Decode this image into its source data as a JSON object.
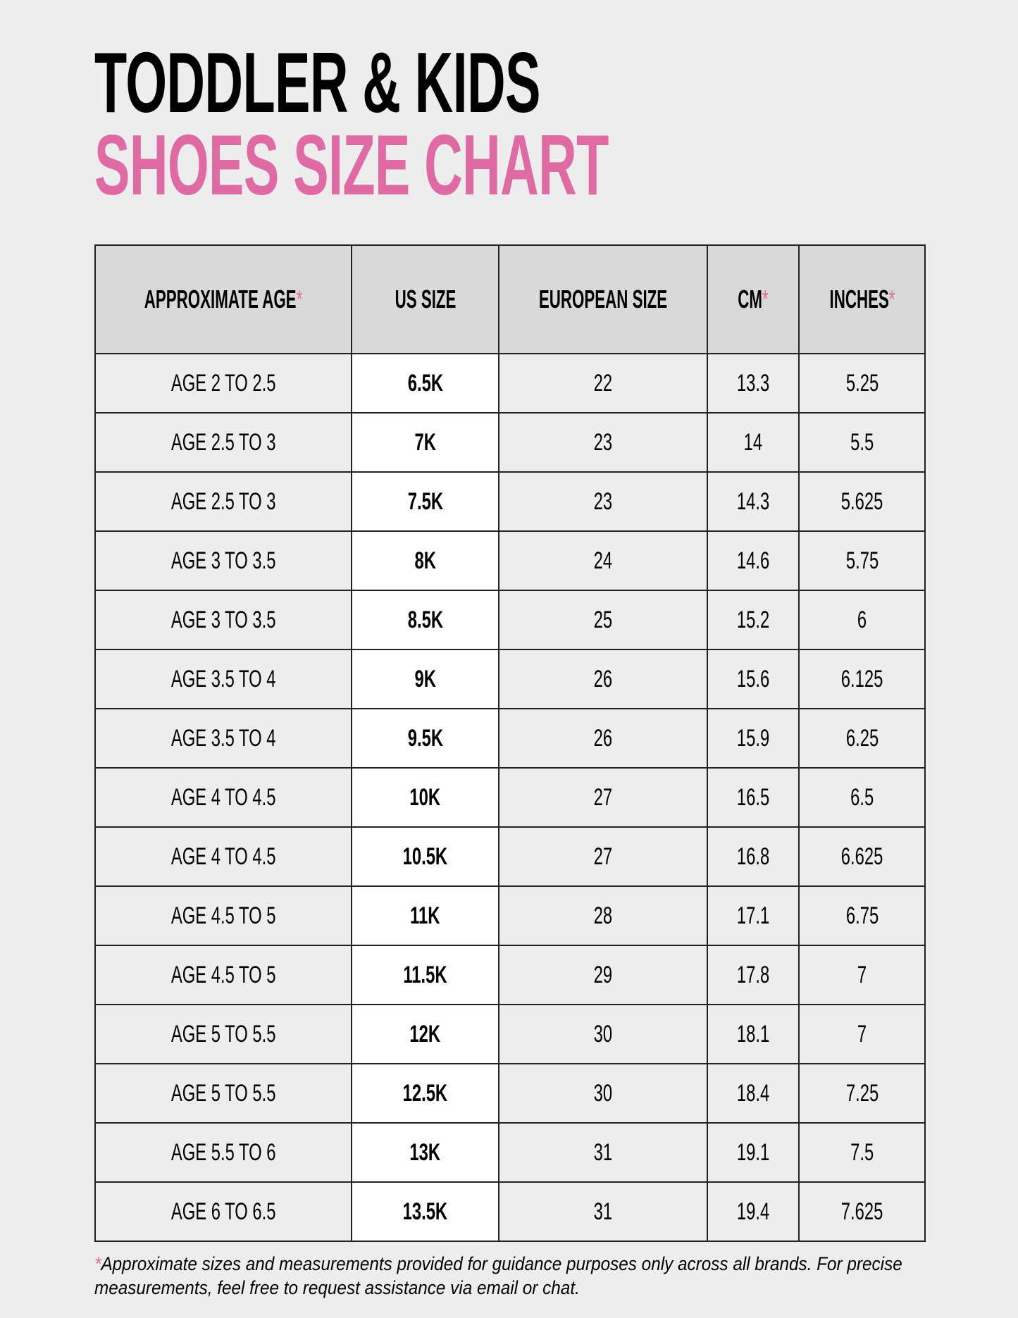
{
  "title": {
    "line1": "TODDLER & KIDS",
    "line2": "SHOES SIZE CHART"
  },
  "colors": {
    "accent": "#e06aa3",
    "header_bg": "#d9d9d9",
    "background": "#ededed",
    "us_column_bg": "#ffffff"
  },
  "table": {
    "headers": [
      {
        "label": "APPROXIMATE AGE",
        "asterisk": "*"
      },
      {
        "label": "US SIZE",
        "asterisk": ""
      },
      {
        "label": "EUROPEAN SIZE",
        "asterisk": ""
      },
      {
        "label": "CM",
        "asterisk": "*"
      },
      {
        "label": "INCHES",
        "asterisk": "*"
      }
    ],
    "rows": [
      [
        "AGE 2 TO 2.5",
        "6.5K",
        "22",
        "13.3",
        "5.25"
      ],
      [
        "AGE 2.5 TO 3",
        "7K",
        "23",
        "14",
        "5.5"
      ],
      [
        "AGE 2.5 TO 3",
        "7.5K",
        "23",
        "14.3",
        "5.625"
      ],
      [
        "AGE 3 TO 3.5",
        "8K",
        "24",
        "14.6",
        "5.75"
      ],
      [
        "AGE 3 TO 3.5",
        "8.5K",
        "25",
        "15.2",
        "6"
      ],
      [
        "AGE 3.5 TO 4",
        "9K",
        "26",
        "15.6",
        "6.125"
      ],
      [
        "AGE 3.5 TO 4",
        "9.5K",
        "26",
        "15.9",
        "6.25"
      ],
      [
        "AGE 4 TO 4.5",
        "10K",
        "27",
        "16.5",
        "6.5"
      ],
      [
        "AGE 4 TO 4.5",
        "10.5K",
        "27",
        "16.8",
        "6.625"
      ],
      [
        "AGE 4.5 TO 5",
        "11K",
        "28",
        "17.1",
        "6.75"
      ],
      [
        "AGE 4.5 TO 5",
        "11.5K",
        "29",
        "17.8",
        "7"
      ],
      [
        "AGE 5 TO 5.5",
        "12K",
        "30",
        "18.1",
        "7"
      ],
      [
        "AGE 5 TO 5.5",
        "12.5K",
        "30",
        "18.4",
        "7.25"
      ],
      [
        "AGE 5.5 TO 6",
        "13K",
        "31",
        "19.1",
        "7.5"
      ],
      [
        "AGE 6 TO 6.5",
        "13.5K",
        "31",
        "19.4",
        "7.625"
      ]
    ]
  },
  "footnote": {
    "asterisk": "*",
    "text": "Approximate sizes and measurements provided for guidance purposes only across all brands. For precise measurements, feel free to request assistance via email or chat."
  }
}
